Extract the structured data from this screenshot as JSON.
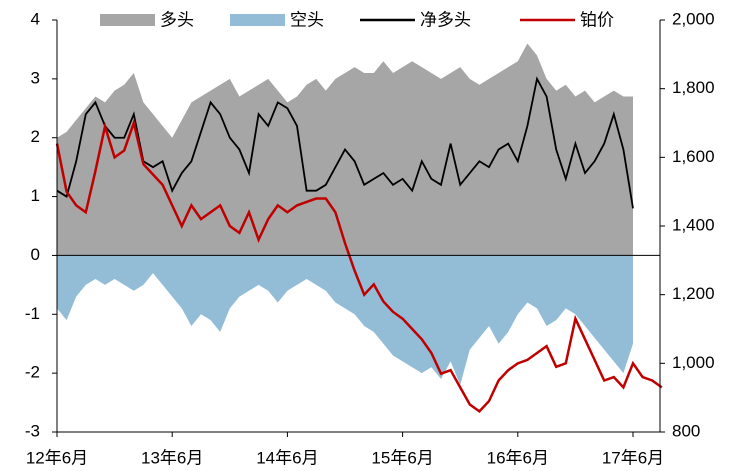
{
  "chart_data": {
    "type": "area-line",
    "categories": [
      "12年6月",
      null,
      null,
      null,
      null,
      null,
      null,
      null,
      null,
      null,
      null,
      null,
      "13年6月",
      null,
      null,
      null,
      null,
      null,
      null,
      null,
      null,
      null,
      null,
      null,
      "14年6月",
      null,
      null,
      null,
      null,
      null,
      null,
      null,
      null,
      null,
      null,
      null,
      "15年6月",
      null,
      null,
      null,
      null,
      null,
      null,
      null,
      null,
      null,
      null,
      null,
      "16年6月",
      null,
      null,
      null,
      null,
      null,
      null,
      null,
      null,
      null,
      null,
      null,
      "17年6月",
      null,
      null,
      null
    ],
    "series": [
      {
        "name": "多头",
        "kind": "area",
        "color": "#a6a6a6",
        "values": [
          2.0,
          2.1,
          2.3,
          2.5,
          2.7,
          2.6,
          2.8,
          2.9,
          3.1,
          2.6,
          2.4,
          2.2,
          2.0,
          2.3,
          2.6,
          2.7,
          2.8,
          2.9,
          3.0,
          2.7,
          2.8,
          2.9,
          3.0,
          2.8,
          2.6,
          2.7,
          2.9,
          3.0,
          2.8,
          3.0,
          3.1,
          3.2,
          3.1,
          3.1,
          3.3,
          3.1,
          3.2,
          3.3,
          3.2,
          3.1,
          3.0,
          3.1,
          3.2,
          3.0,
          2.9,
          3.0,
          3.1,
          3.2,
          3.3,
          3.6,
          3.4,
          3.0,
          2.8,
          2.9,
          2.7,
          2.8,
          2.6,
          2.7,
          2.8,
          2.7,
          2.7,
          null,
          null,
          null
        ]
      },
      {
        "name": "空头",
        "kind": "area",
        "color": "#93bdd6",
        "values": [
          -0.9,
          -1.1,
          -0.7,
          -0.5,
          -0.4,
          -0.5,
          -0.4,
          -0.5,
          -0.6,
          -0.5,
          -0.3,
          -0.5,
          -0.7,
          -0.9,
          -1.2,
          -1.0,
          -1.1,
          -1.3,
          -0.9,
          -0.7,
          -0.6,
          -0.5,
          -0.6,
          -0.8,
          -0.6,
          -0.5,
          -0.4,
          -0.5,
          -0.6,
          -0.8,
          -0.9,
          -1.0,
          -1.2,
          -1.3,
          -1.5,
          -1.7,
          -1.8,
          -1.9,
          -2.0,
          -1.9,
          -2.1,
          -1.8,
          -2.2,
          -1.6,
          -1.4,
          -1.2,
          -1.5,
          -1.3,
          -1.0,
          -0.8,
          -0.9,
          -1.2,
          -1.1,
          -0.9,
          -1.0,
          -1.2,
          -1.4,
          -1.6,
          -1.8,
          -2.0,
          -1.5,
          null,
          null,
          null
        ]
      },
      {
        "name": "净多头",
        "kind": "line",
        "color": "#000000",
        "values": [
          1.1,
          1.0,
          1.6,
          2.4,
          2.6,
          2.2,
          2.0,
          2.0,
          2.4,
          1.6,
          1.5,
          1.6,
          1.1,
          1.4,
          1.6,
          2.1,
          2.6,
          2.4,
          2.0,
          1.8,
          1.4,
          2.4,
          2.2,
          2.6,
          2.5,
          2.2,
          1.1,
          1.1,
          1.2,
          1.5,
          1.8,
          1.6,
          1.2,
          1.3,
          1.4,
          1.2,
          1.3,
          1.1,
          1.6,
          1.3,
          1.2,
          1.9,
          1.2,
          1.4,
          1.6,
          1.5,
          1.8,
          1.9,
          1.6,
          2.2,
          3.0,
          2.7,
          1.8,
          1.3,
          1.9,
          1.4,
          1.6,
          1.9,
          2.4,
          1.8,
          0.8,
          null,
          null,
          null
        ]
      },
      {
        "name": "铂价",
        "kind": "line",
        "axis": "y2",
        "color": "#c00000",
        "values": [
          1640,
          1500,
          1460,
          1440,
          1560,
          1690,
          1600,
          1620,
          1700,
          1580,
          1550,
          1520,
          1460,
          1400,
          1460,
          1420,
          1440,
          1460,
          1400,
          1380,
          1440,
          1360,
          1420,
          1460,
          1440,
          1460,
          1470,
          1480,
          1480,
          1440,
          1350,
          1270,
          1200,
          1230,
          1180,
          1150,
          1130,
          1100,
          1070,
          1030,
          970,
          980,
          930,
          880,
          860,
          890,
          950,
          980,
          1000,
          1010,
          1030,
          1050,
          990,
          1000,
          1130,
          1070,
          1010,
          950,
          960,
          930,
          1000,
          960,
          950,
          930
        ]
      }
    ],
    "ylim": [
      -3,
      4
    ],
    "yticks": [
      -3,
      -2,
      -1,
      0,
      1,
      2,
      3,
      4
    ],
    "y2lim": [
      800,
      2000
    ],
    "y2ticks": [
      800,
      {
        "value": 1000,
        "label": "1,000"
      },
      {
        "value": 1200,
        "label": "1,200"
      },
      {
        "value": 1400,
        "label": "1,400"
      },
      {
        "value": 1600,
        "label": "1,600"
      },
      {
        "value": 1800,
        "label": "1,800"
      },
      {
        "value": 2000,
        "label": "2,000"
      }
    ],
    "legend": "top"
  }
}
